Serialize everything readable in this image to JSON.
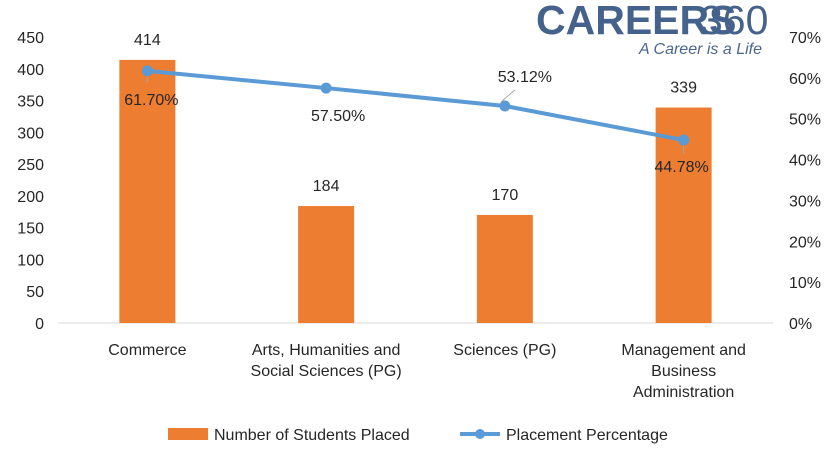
{
  "logo": {
    "brand_text": "CAREERS",
    "brand_number": "360",
    "tagline": "A Career is a Life"
  },
  "colors": {
    "bar": "#ed7d31",
    "line": "#5b9bd5",
    "text": "#262626",
    "logo": "#44628b"
  },
  "chart_data": {
    "type": "bar",
    "combo": "bar-line-dual-axis",
    "title": "",
    "xlabel": "",
    "ylabel": "",
    "categories": [
      [
        "Commerce"
      ],
      [
        "Arts, Humanities and",
        "Social Sciences (PG)"
      ],
      [
        "Sciences (PG)"
      ],
      [
        "Management and",
        "Business",
        "Administration"
      ]
    ],
    "series": [
      {
        "name": "Number of Students Placed",
        "type": "bar",
        "axis": "left",
        "values": [
          414,
          184,
          170,
          339
        ],
        "labels": [
          "414",
          "184",
          "170",
          "339"
        ]
      },
      {
        "name": "Placement Percentage",
        "type": "line",
        "axis": "right",
        "values": [
          61.7,
          57.5,
          53.12,
          44.78
        ],
        "labels": [
          "61.70%",
          "57.50%",
          "53.12%",
          "44.78%"
        ]
      }
    ],
    "left_axis": {
      "ylim": [
        0,
        450
      ],
      "ticks": [
        "0",
        "50",
        "100",
        "150",
        "200",
        "250",
        "300",
        "350",
        "400",
        "450"
      ]
    },
    "right_axis": {
      "ylim": [
        0,
        70
      ],
      "ticks": [
        "0%",
        "10%",
        "20%",
        "30%",
        "40%",
        "50%",
        "60%",
        "70%"
      ]
    },
    "grid": false,
    "legend_position": "bottom"
  }
}
